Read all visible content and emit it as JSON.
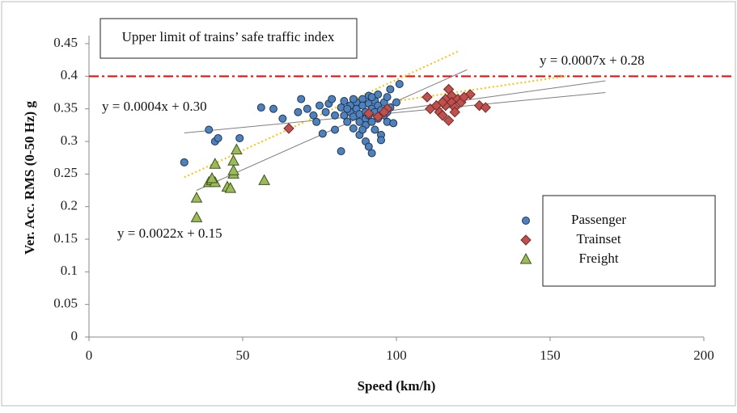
{
  "chart_data": {
    "type": "scatter",
    "xlabel": "Speed (km/h)",
    "ylabel": "Ver. Acc. RMS (0-50 Hz) g",
    "xlim": [
      0,
      200
    ],
    "xticks": [
      0,
      50,
      100,
      150,
      200
    ],
    "ylim": [
      0,
      0.45
    ],
    "yticks": [
      0,
      0.05,
      0.1,
      0.15,
      0.2,
      0.25,
      0.3,
      0.35,
      0.4,
      0.45
    ],
    "legend": "lower right",
    "series": [
      {
        "name": "Passenger",
        "color": "#4f81bd",
        "marker": "circle",
        "x": [
          31,
          39,
          41,
          42,
          49,
          56,
          60,
          63,
          68,
          69,
          71,
          73,
          74,
          75,
          76,
          77,
          78,
          79,
          80,
          80,
          82,
          82,
          83,
          83,
          84,
          85,
          85,
          86,
          86,
          87,
          87,
          88,
          88,
          88,
          89,
          89,
          90,
          90,
          90,
          90,
          91,
          91,
          91,
          91,
          92,
          92,
          92,
          93,
          93,
          93,
          94,
          94,
          94,
          95,
          95,
          96,
          96,
          97,
          97,
          98,
          98,
          99,
          100,
          101,
          84,
          86,
          89,
          92,
          95,
          97
        ],
        "values": [
          0.268,
          0.318,
          0.3,
          0.305,
          0.305,
          0.352,
          0.35,
          0.335,
          0.345,
          0.365,
          0.35,
          0.34,
          0.33,
          0.355,
          0.312,
          0.345,
          0.358,
          0.365,
          0.34,
          0.318,
          0.285,
          0.352,
          0.362,
          0.34,
          0.33,
          0.355,
          0.345,
          0.338,
          0.32,
          0.36,
          0.35,
          0.342,
          0.33,
          0.31,
          0.365,
          0.355,
          0.345,
          0.335,
          0.325,
          0.3,
          0.37,
          0.358,
          0.34,
          0.292,
          0.282,
          0.35,
          0.33,
          0.362,
          0.345,
          0.318,
          0.372,
          0.355,
          0.335,
          0.31,
          0.302,
          0.36,
          0.34,
          0.368,
          0.33,
          0.38,
          0.352,
          0.328,
          0.36,
          0.388,
          0.35,
          0.365,
          0.318,
          0.368,
          0.348,
          0.345
        ]
      },
      {
        "name": "Trainset",
        "color": "#c0504d",
        "marker": "diamond",
        "x": [
          65,
          91,
          94,
          97,
          96,
          110,
          111,
          114,
          115,
          116,
          116,
          117,
          117,
          118,
          118,
          119,
          120,
          121,
          115,
          113,
          124,
          127,
          129,
          119,
          122
        ],
        "values": [
          0.32,
          0.343,
          0.338,
          0.35,
          0.345,
          0.368,
          0.35,
          0.345,
          0.34,
          0.365,
          0.355,
          0.38,
          0.332,
          0.37,
          0.36,
          0.352,
          0.365,
          0.36,
          0.36,
          0.355,
          0.372,
          0.355,
          0.352,
          0.345,
          0.368
        ]
      },
      {
        "name": "Freight",
        "color": "#9bbb59",
        "marker": "triangle",
        "x": [
          35,
          35,
          39,
          40,
          41,
          41,
          45,
          46,
          47,
          47,
          47,
          48,
          57,
          40
        ],
        "values": [
          0.213,
          0.183,
          0.237,
          0.24,
          0.265,
          0.237,
          0.23,
          0.228,
          0.27,
          0.25,
          0.255,
          0.287,
          0.24,
          0.243
        ]
      }
    ],
    "trendlines": [
      {
        "color": "#7f7f7f",
        "dash": false,
        "x": [
          31,
          168
        ],
        "y": [
          0.313,
          0.375
        ]
      },
      {
        "color": "#7f7f7f",
        "dash": false,
        "x": [
          35,
          123
        ],
        "y": [
          0.225,
          0.41
        ]
      },
      {
        "color": "#7f7f7f",
        "dash": false,
        "x": [
          90,
          168
        ],
        "y": [
          0.342,
          0.393
        ]
      },
      {
        "color": "#ffc000",
        "dash": true,
        "x": [
          31,
          120
        ],
        "y": [
          0.245,
          0.438
        ]
      },
      {
        "color": "#ffc000",
        "dash": true,
        "x": [
          100,
          155
        ],
        "y": [
          0.362,
          0.4
        ]
      }
    ],
    "limit": {
      "value": 0.4,
      "color": "#ff0000",
      "label": "Upper limit of trains’ safe traffic index"
    },
    "annotations": [
      "y = 0.0007x + 0.28",
      "y = 0.0004x + 0.30",
      "y = 0.0022x + 0.15"
    ]
  }
}
